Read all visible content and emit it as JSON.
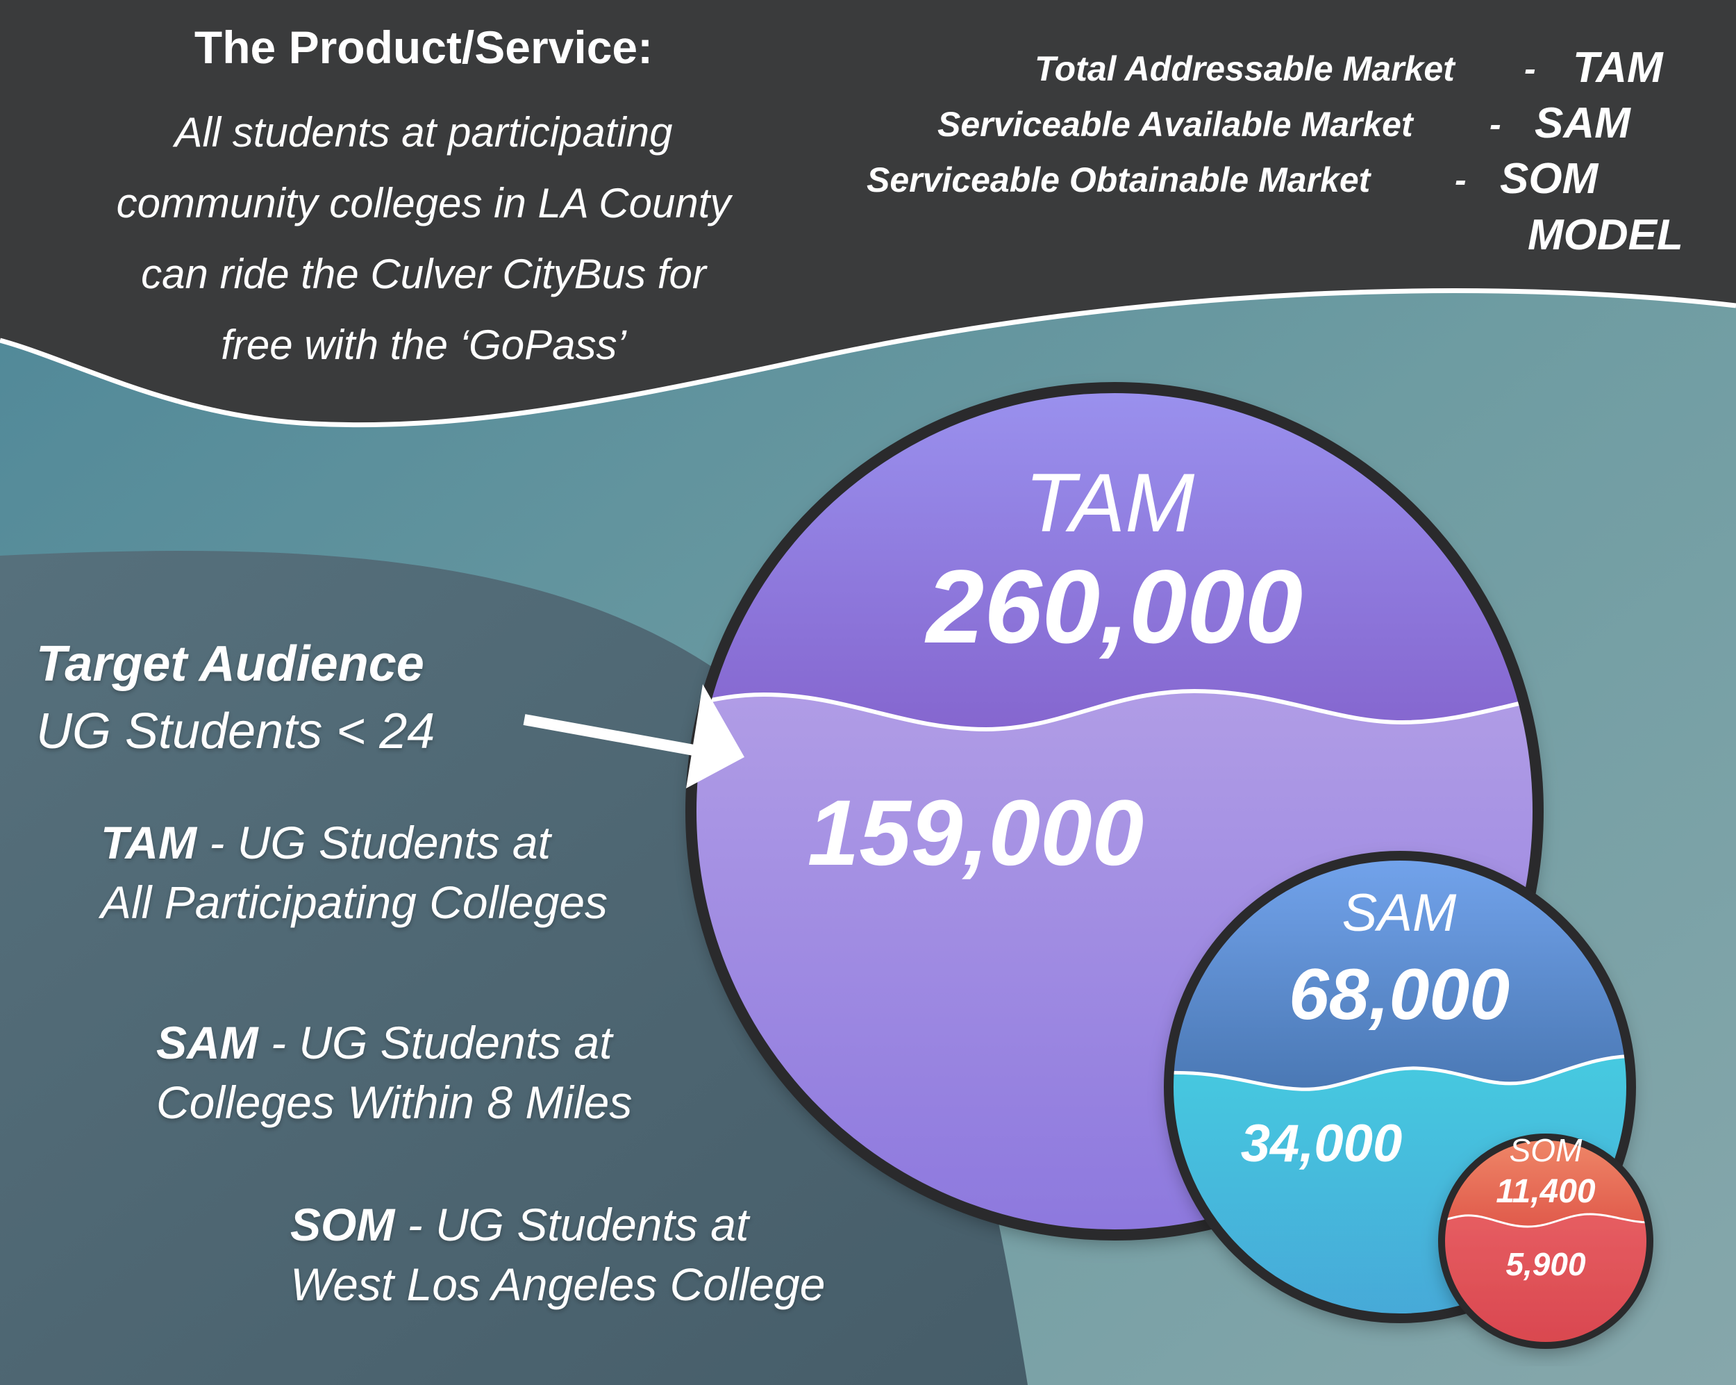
{
  "header": {
    "title": "The Product/Service:",
    "body_lines": [
      "All students at participating",
      "community colleges in LA County",
      "can ride the Culver CityBus for",
      "free with the ‘GoPass’"
    ]
  },
  "model_legend": {
    "rows": [
      {
        "name": "Total Addressable Market",
        "dash": "-",
        "abbr": "TAM"
      },
      {
        "name": "Serviceable Available Market",
        "dash": "-",
        "abbr": "SAM"
      },
      {
        "name": "Serviceable Obtainable Market",
        "dash": "-",
        "abbr": "SOM"
      }
    ],
    "model_label": "MODEL"
  },
  "target": {
    "title": "Target Audience",
    "subtitle": "UG Students < 24"
  },
  "descriptions": {
    "tam": {
      "key": "TAM",
      "line1": " - UG Students at",
      "line2": "All Participating Colleges"
    },
    "sam": {
      "key": "SAM",
      "line1": " - UG Students at",
      "line2": "Colleges Within 8 Miles"
    },
    "som": {
      "key": "SOM",
      "line1": " - UG Students at",
      "line2": "West Los Angeles College"
    }
  },
  "circles": {
    "tam": {
      "label": "TAM",
      "total": "260,000",
      "target": "159,000"
    },
    "sam": {
      "label": "SAM",
      "total": "68,000",
      "target": "34,000"
    },
    "som": {
      "label": "SOM",
      "total": "11,400",
      "target": "5,900"
    }
  },
  "colors": {
    "dark_band": "#3a3b3c",
    "teal_bg": "#5f8f9b",
    "tam_top": "#8e7fe2",
    "tam_bottom": "#b7a6e8",
    "sam_top": "#5e8fd6",
    "sam_bottom": "#3fd3dd",
    "som_top": "#ea6a55",
    "som_bottom": "#df5058"
  },
  "chart_data": {
    "type": "nested-circles",
    "series": [
      {
        "name": "TAM",
        "values": [
          260000,
          159000
        ]
      },
      {
        "name": "SAM",
        "values": [
          68000,
          34000
        ]
      },
      {
        "name": "SOM",
        "values": [
          11400,
          5900
        ]
      }
    ]
  }
}
